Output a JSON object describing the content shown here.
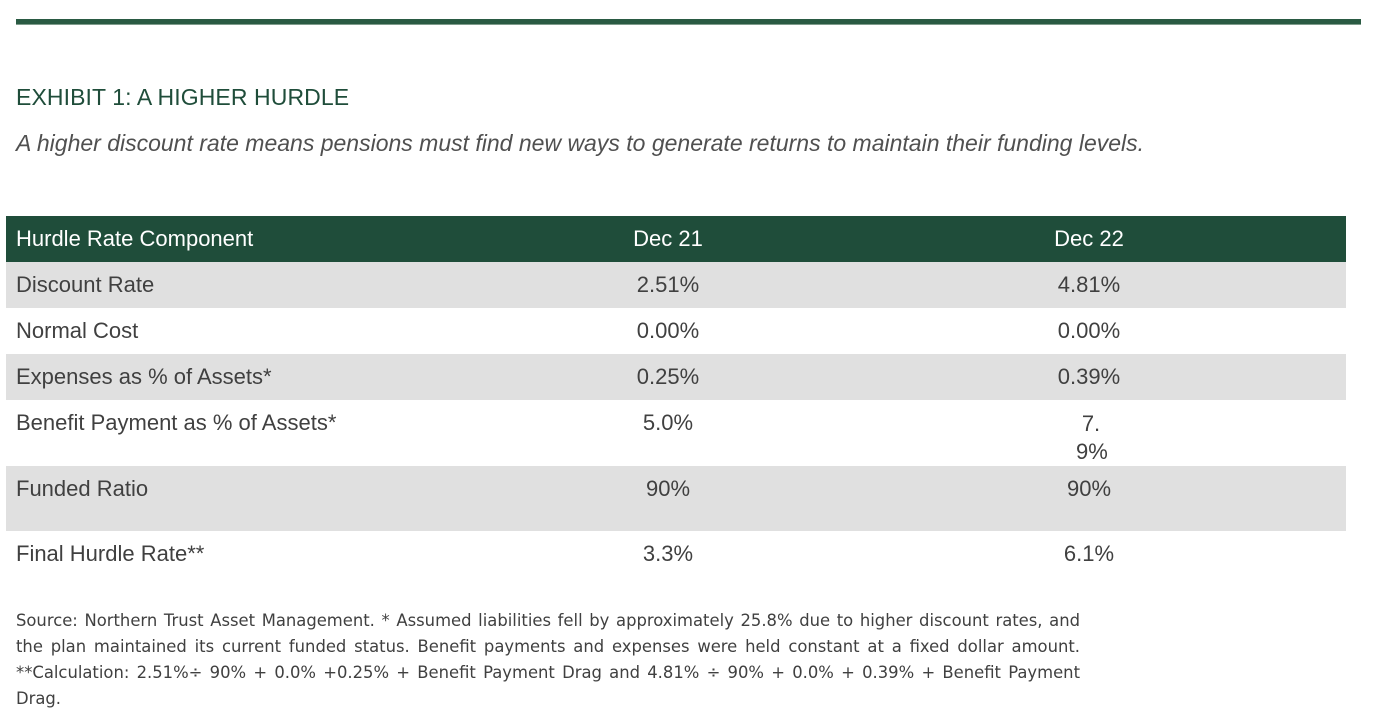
{
  "exhibit": {
    "title": "EXHIBIT 1: A HIGHER HURDLE",
    "subtitle": "A higher discount rate means pensions must find new ways to generate returns to maintain their funding levels."
  },
  "table": {
    "headers": [
      "Hurdle Rate Component",
      "Dec 21",
      "Dec 22"
    ],
    "rows": [
      {
        "component": "Discount Rate",
        "dec21": "2.51%",
        "dec22": "4.81%"
      },
      {
        "component": "Normal Cost",
        "dec21": "0.00%",
        "dec22": "0.00%"
      },
      {
        "component": "Expenses as % of Assets*",
        "dec21": "0.25%",
        "dec22": "0.39%"
      },
      {
        "component": "Benefit Payment as % of Assets*",
        "dec21": "5.0%",
        "dec22": "7.9%"
      },
      {
        "component": "Funded Ratio",
        "dec21": "90%",
        "dec22": "90%"
      },
      {
        "component": "Final Hurdle Rate**",
        "dec21": "3.3%",
        "dec22": "6.1%"
      }
    ]
  },
  "footnote": "Source: Northern Trust Asset Management. * Assumed liabilities fell by approximately 25.8% due to higher discount rates, and the plan maintained its current funded status. Benefit payments and expenses were held constant at a fixed dollar amount. **Calculation: 2.51%÷ 90% + 0.0% +0.25% + Benefit Payment Drag and 4.81% ÷ 90% + 0.0% + 0.39% + Benefit Payment Drag.",
  "colors": {
    "accent_green": "#1f4d3a",
    "row_shade": "#e0e0e0"
  }
}
